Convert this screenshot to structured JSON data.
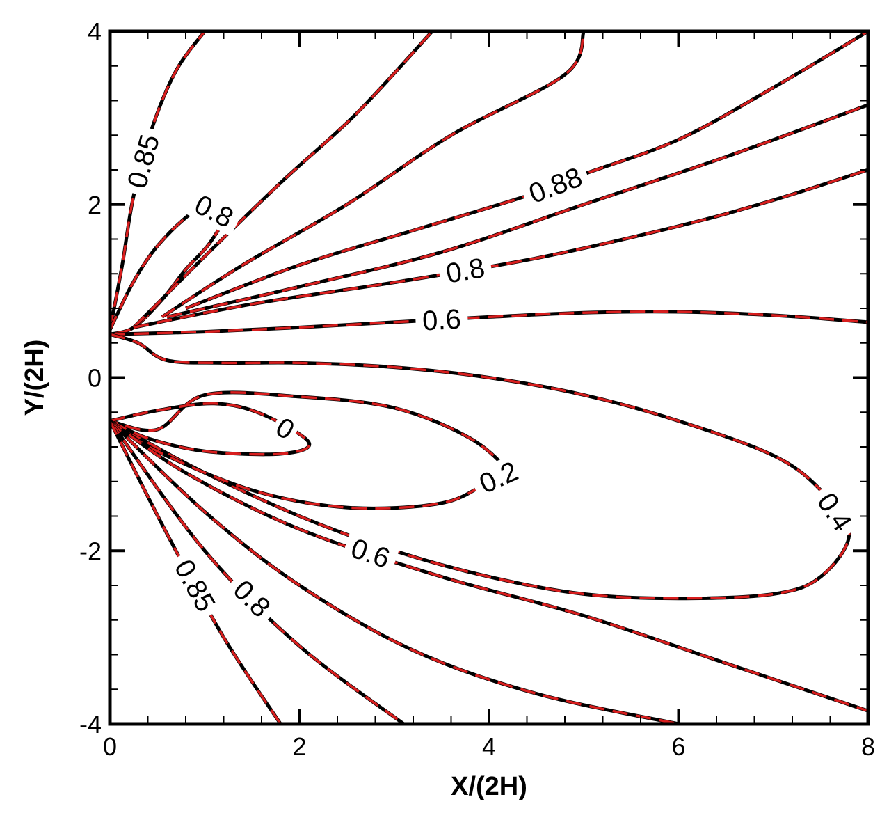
{
  "chart_data": {
    "type": "contour",
    "xlabel": "X/(2H)",
    "ylabel": "Y/(2H)",
    "xlim": [
      0,
      8
    ],
    "ylim": [
      -4,
      4
    ],
    "x_ticks": [
      0,
      2,
      4,
      6,
      8
    ],
    "y_ticks": [
      -4,
      -2,
      0,
      2,
      4
    ],
    "x_tick_labels": [
      "0",
      "2",
      "4",
      "6",
      "8"
    ],
    "y_tick_labels": [
      "-4",
      "-2",
      "0",
      "2",
      "4"
    ],
    "grid": false,
    "series_styles": [
      {
        "style": "solid",
        "color": "#000000"
      },
      {
        "style": "dashed",
        "color": "#d81e1e"
      }
    ],
    "contours": [
      {
        "label": "0.85",
        "points": [
          [
            0.0,
            0.55
          ],
          [
            0.13,
            1.3
          ],
          [
            0.25,
            2.1
          ],
          [
            0.45,
            2.9
          ],
          [
            0.7,
            3.55
          ],
          [
            1.0,
            4.0
          ]
        ]
      },
      {
        "label": "0.8",
        "points": [
          [
            0.0,
            0.55
          ],
          [
            0.22,
            1.05
          ],
          [
            0.45,
            1.45
          ],
          [
            0.75,
            1.8
          ],
          [
            1.0,
            1.98
          ],
          [
            1.2,
            1.87
          ],
          [
            1.05,
            1.55
          ],
          [
            0.8,
            1.25
          ],
          [
            0.55,
            0.9
          ],
          [
            0.25,
            0.58
          ],
          [
            0.0,
            0.5
          ]
        ]
      },
      {
        "label": "",
        "points": [
          [
            0.25,
            0.58
          ],
          [
            1.0,
            1.4
          ],
          [
            1.8,
            2.25
          ],
          [
            2.6,
            3.05
          ],
          [
            3.4,
            4.0
          ]
        ]
      },
      {
        "label": "",
        "points": [
          [
            0.55,
            0.7
          ],
          [
            1.4,
            1.3
          ],
          [
            2.5,
            2.0
          ],
          [
            3.6,
            2.8
          ],
          [
            4.8,
            3.5
          ],
          [
            5.0,
            4.0
          ]
        ]
      },
      {
        "label": "0.88",
        "points": [
          [
            0.8,
            0.8
          ],
          [
            2.0,
            1.3
          ],
          [
            3.2,
            1.7
          ],
          [
            4.4,
            2.1
          ],
          [
            5.0,
            2.35
          ],
          [
            6.0,
            2.75
          ],
          [
            7.0,
            3.35
          ],
          [
            8.0,
            4.0
          ]
        ]
      },
      {
        "label": "",
        "points": [
          [
            0.6,
            0.7
          ],
          [
            2.0,
            1.05
          ],
          [
            3.5,
            1.45
          ],
          [
            5.0,
            2.0
          ],
          [
            6.5,
            2.55
          ],
          [
            8.0,
            3.15
          ]
        ]
      },
      {
        "label": "0.8",
        "points": [
          [
            0.25,
            0.58
          ],
          [
            1.5,
            0.85
          ],
          [
            3.0,
            1.1
          ],
          [
            4.5,
            1.38
          ],
          [
            6.0,
            1.75
          ],
          [
            7.0,
            2.05
          ],
          [
            8.0,
            2.4
          ]
        ]
      },
      {
        "label": "0.6",
        "points": [
          [
            0.0,
            0.5
          ],
          [
            1.0,
            0.53
          ],
          [
            2.0,
            0.58
          ],
          [
            3.0,
            0.64
          ],
          [
            4.0,
            0.7
          ],
          [
            5.0,
            0.75
          ],
          [
            6.0,
            0.76
          ],
          [
            7.0,
            0.72
          ],
          [
            8.0,
            0.64
          ]
        ]
      },
      {
        "label": "0.4",
        "points": [
          [
            0.0,
            0.5
          ],
          [
            0.3,
            0.4
          ],
          [
            0.6,
            0.2
          ],
          [
            1.2,
            0.17
          ],
          [
            2.0,
            0.17
          ],
          [
            3.0,
            0.12
          ],
          [
            4.0,
            0.0
          ],
          [
            5.0,
            -0.2
          ],
          [
            6.0,
            -0.5
          ],
          [
            7.0,
            -0.9
          ],
          [
            7.5,
            -1.3
          ],
          [
            7.8,
            -1.8
          ],
          [
            7.5,
            -2.3
          ],
          [
            7.0,
            -2.5
          ],
          [
            6.0,
            -2.55
          ],
          [
            5.0,
            -2.5
          ],
          [
            4.0,
            -2.3
          ],
          [
            3.0,
            -2.0
          ],
          [
            2.0,
            -1.6
          ],
          [
            1.0,
            -1.1
          ],
          [
            0.4,
            -0.75
          ],
          [
            0.0,
            -0.5
          ]
        ]
      },
      {
        "label": "0.2",
        "points": [
          [
            0.0,
            -0.5
          ],
          [
            0.5,
            -0.85
          ],
          [
            1.5,
            -1.3
          ],
          [
            2.5,
            -1.5
          ],
          [
            3.5,
            -1.45
          ],
          [
            4.0,
            -1.2
          ],
          [
            4.2,
            -1.1
          ],
          [
            3.8,
            -0.7
          ],
          [
            3.0,
            -0.35
          ],
          [
            2.0,
            -0.22
          ],
          [
            1.0,
            -0.2
          ],
          [
            0.5,
            -0.6
          ],
          [
            0.0,
            -0.5
          ]
        ]
      },
      {
        "label": "0",
        "points": [
          [
            0.0,
            -0.5
          ],
          [
            0.5,
            -0.38
          ],
          [
            1.1,
            -0.3
          ],
          [
            1.6,
            -0.42
          ],
          [
            2.1,
            -0.75
          ],
          [
            1.8,
            -0.88
          ],
          [
            1.0,
            -0.85
          ],
          [
            0.4,
            -0.7
          ],
          [
            0.0,
            -0.5
          ]
        ]
      },
      {
        "label": "0.6",
        "points": [
          [
            0.0,
            -0.5
          ],
          [
            0.8,
            -1.1
          ],
          [
            2.0,
            -1.75
          ],
          [
            3.5,
            -2.3
          ],
          [
            5.0,
            -2.75
          ],
          [
            6.5,
            -3.3
          ],
          [
            8.0,
            -3.85
          ]
        ]
      },
      {
        "label": "",
        "points": [
          [
            0.0,
            -0.5
          ],
          [
            1.0,
            -1.55
          ],
          [
            2.0,
            -2.4
          ],
          [
            3.2,
            -3.15
          ],
          [
            4.5,
            -3.65
          ],
          [
            6.0,
            -4.0
          ]
        ]
      },
      {
        "label": "0.8",
        "points": [
          [
            0.0,
            -0.5
          ],
          [
            1.0,
            -2.0
          ],
          [
            2.0,
            -3.1
          ],
          [
            3.1,
            -4.0
          ]
        ]
      },
      {
        "label": "0.85",
        "points": [
          [
            0.0,
            -0.5
          ],
          [
            0.6,
            -1.8
          ],
          [
            1.2,
            -3.0
          ],
          [
            1.8,
            -4.0
          ]
        ]
      }
    ]
  }
}
